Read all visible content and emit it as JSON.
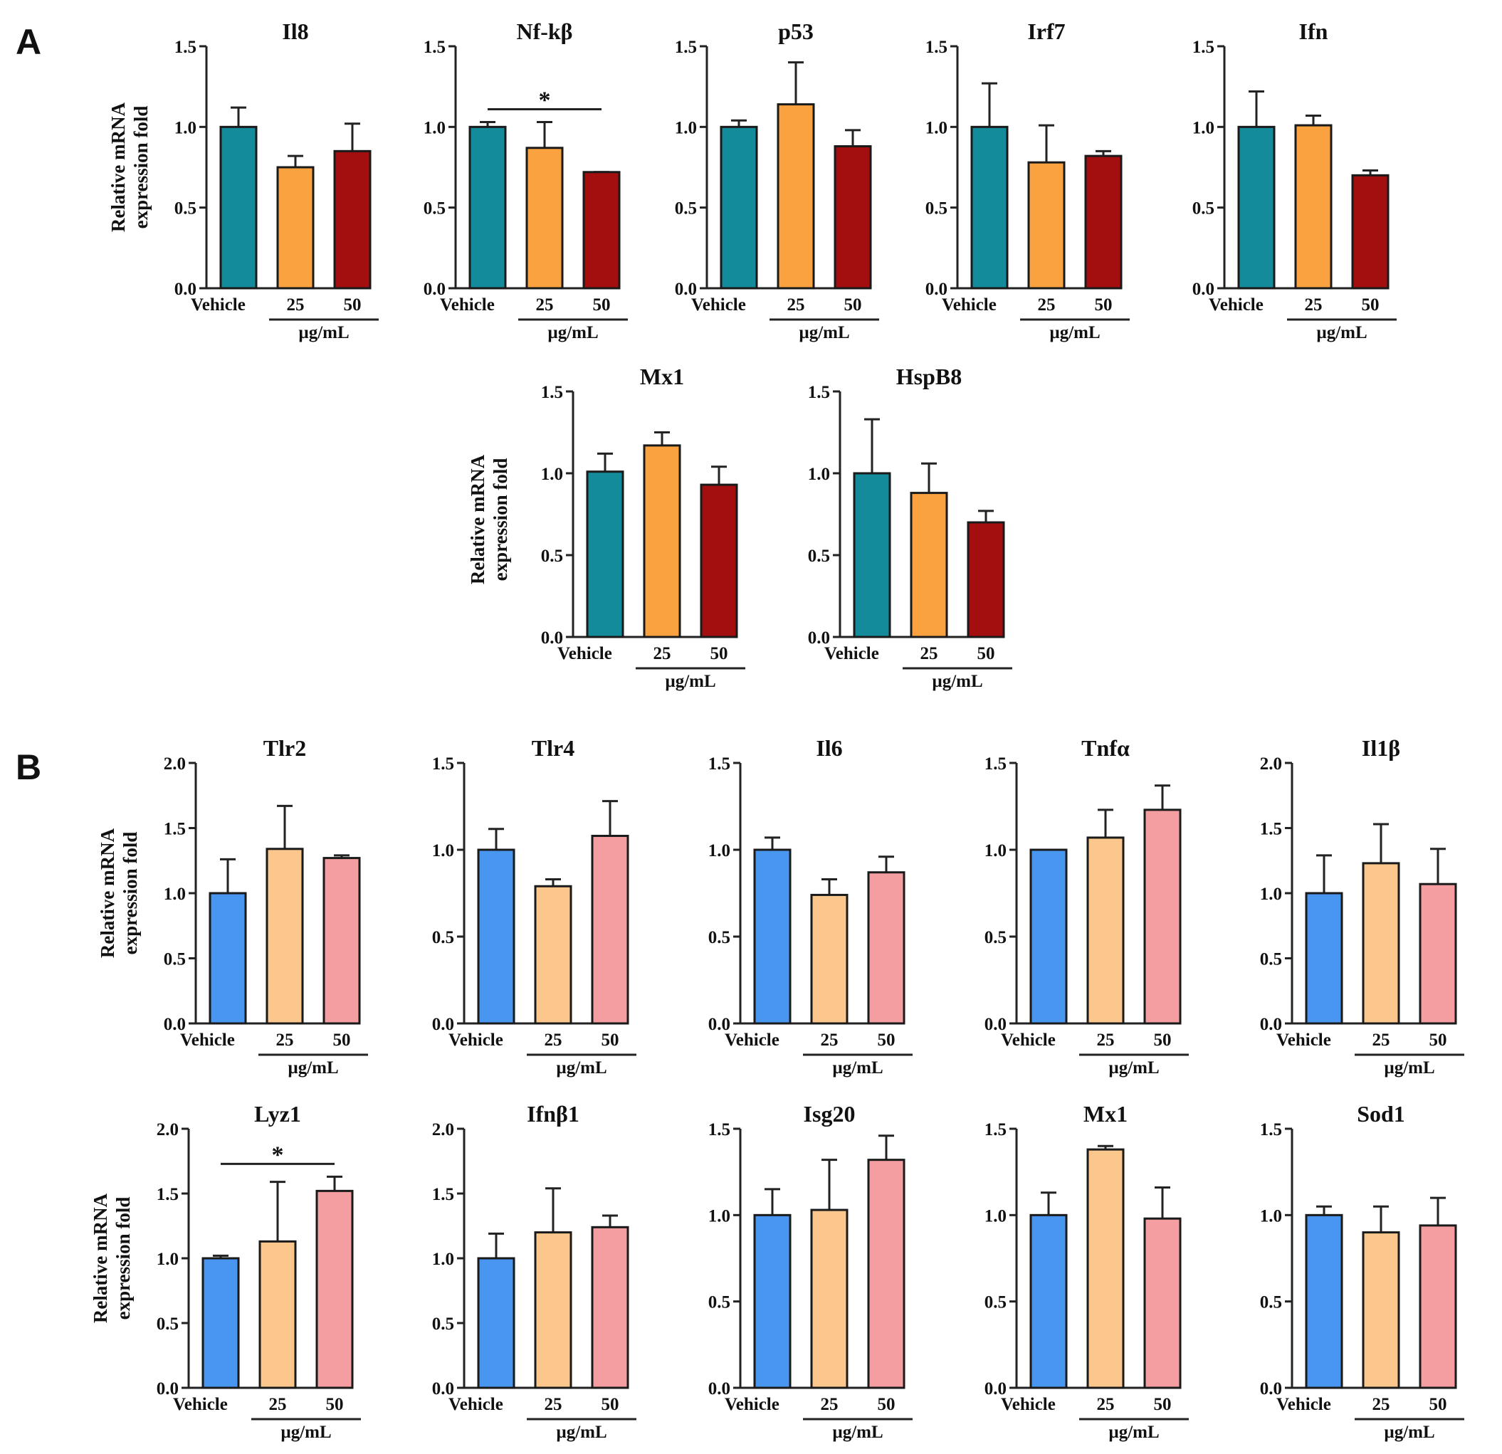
{
  "panels": [
    "A",
    "B"
  ],
  "ylabel": [
    "Relative mRNA",
    "expression fold"
  ],
  "categories": [
    "Vehicle",
    "25",
    "50"
  ],
  "unit": "µg/mL",
  "palettes": {
    "A": [
      "#138b9b",
      "#fba240",
      "#a30f0f"
    ],
    "B": [
      "#4896ef",
      "#fbc78c",
      "#f49ea2"
    ]
  },
  "chart_data": [
    {
      "type": "bar",
      "panel": "A",
      "title": "Il8",
      "categories": [
        "Vehicle",
        "25",
        "50"
      ],
      "values": [
        1.0,
        0.75,
        0.85
      ],
      "errors": [
        0.12,
        0.07,
        0.17
      ],
      "ylim": [
        0,
        1.5
      ],
      "yticks": [
        "0.0",
        "0.5",
        "1.0",
        "1.5"
      ],
      "sig": null
    },
    {
      "type": "bar",
      "panel": "A",
      "title": "Nf-kβ",
      "categories": [
        "Vehicle",
        "25",
        "50"
      ],
      "values": [
        1.0,
        0.87,
        0.72
      ],
      "errors": [
        0.03,
        0.16,
        0.0
      ],
      "ylim": [
        0,
        1.5
      ],
      "yticks": [
        "0.0",
        "0.5",
        "1.0",
        "1.5"
      ],
      "sig": {
        "from": 0,
        "to": 2,
        "label": "*"
      }
    },
    {
      "type": "bar",
      "panel": "A",
      "title": "p53",
      "categories": [
        "Vehicle",
        "25",
        "50"
      ],
      "values": [
        1.0,
        1.14,
        0.88
      ],
      "errors": [
        0.04,
        0.26,
        0.1
      ],
      "ylim": [
        0,
        1.5
      ],
      "yticks": [
        "0.0",
        "0.5",
        "1.0",
        "1.5"
      ],
      "sig": null
    },
    {
      "type": "bar",
      "panel": "A",
      "title": "Irf7",
      "categories": [
        "Vehicle",
        "25",
        "50"
      ],
      "values": [
        1.0,
        0.78,
        0.82
      ],
      "errors": [
        0.27,
        0.23,
        0.03
      ],
      "ylim": [
        0,
        1.5
      ],
      "yticks": [
        "0.0",
        "0.5",
        "1.0",
        "1.5"
      ],
      "sig": null
    },
    {
      "type": "bar",
      "panel": "A",
      "title": "Ifn",
      "categories": [
        "Vehicle",
        "25",
        "50"
      ],
      "values": [
        1.0,
        1.01,
        0.7
      ],
      "errors": [
        0.22,
        0.06,
        0.03
      ],
      "ylim": [
        0,
        1.5
      ],
      "yticks": [
        "0.0",
        "0.5",
        "1.0",
        "1.5"
      ],
      "sig": null
    },
    {
      "type": "bar",
      "panel": "A",
      "title": "Mx1",
      "categories": [
        "Vehicle",
        "25",
        "50"
      ],
      "values": [
        1.01,
        1.17,
        0.93
      ],
      "errors": [
        0.11,
        0.08,
        0.11
      ],
      "ylim": [
        0,
        1.5
      ],
      "yticks": [
        "0.0",
        "0.5",
        "1.0",
        "1.5"
      ],
      "sig": null
    },
    {
      "type": "bar",
      "panel": "A",
      "title": "HspB8",
      "categories": [
        "Vehicle",
        "25",
        "50"
      ],
      "values": [
        1.0,
        0.88,
        0.7
      ],
      "errors": [
        0.33,
        0.18,
        0.07
      ],
      "ylim": [
        0,
        1.5
      ],
      "yticks": [
        "0.0",
        "0.5",
        "1.0",
        "1.5"
      ],
      "sig": null
    },
    {
      "type": "bar",
      "panel": "B",
      "title": "Tlr2",
      "categories": [
        "Vehicle",
        "25",
        "50"
      ],
      "values": [
        1.0,
        1.34,
        1.27
      ],
      "errors": [
        0.26,
        0.33,
        0.02
      ],
      "ylim": [
        0,
        2.0
      ],
      "yticks": [
        "0.0",
        "0.5",
        "1.0",
        "1.5",
        "2.0"
      ],
      "sig": null
    },
    {
      "type": "bar",
      "panel": "B",
      "title": "Tlr4",
      "categories": [
        "Vehicle",
        "25",
        "50"
      ],
      "values": [
        1.0,
        0.79,
        1.08
      ],
      "errors": [
        0.12,
        0.04,
        0.2
      ],
      "ylim": [
        0,
        1.5
      ],
      "yticks": [
        "0.0",
        "0.5",
        "1.0",
        "1.5"
      ],
      "sig": null
    },
    {
      "type": "bar",
      "panel": "B",
      "title": "Il6",
      "categories": [
        "Vehicle",
        "25",
        "50"
      ],
      "values": [
        1.0,
        0.74,
        0.87
      ],
      "errors": [
        0.07,
        0.09,
        0.09
      ],
      "ylim": [
        0,
        1.5
      ],
      "yticks": [
        "0.0",
        "0.5",
        "1.0",
        "1.5"
      ],
      "sig": null
    },
    {
      "type": "bar",
      "panel": "B",
      "title": "Tnfα",
      "categories": [
        "Vehicle",
        "25",
        "50"
      ],
      "values": [
        1.0,
        1.07,
        1.23
      ],
      "errors": [
        0.0,
        0.16,
        0.14
      ],
      "ylim": [
        0,
        1.5
      ],
      "yticks": [
        "0.0",
        "0.5",
        "1.0",
        "1.5"
      ],
      "sig": null
    },
    {
      "type": "bar",
      "panel": "B",
      "title": "Il1β",
      "categories": [
        "Vehicle",
        "25",
        "50"
      ],
      "values": [
        1.0,
        1.23,
        1.07
      ],
      "errors": [
        0.29,
        0.3,
        0.27
      ],
      "ylim": [
        0,
        2.0
      ],
      "yticks": [
        "0.0",
        "0.5",
        "1.0",
        "1.5",
        "2.0"
      ],
      "sig": null
    },
    {
      "type": "bar",
      "panel": "B",
      "title": "Lyz1",
      "categories": [
        "Vehicle",
        "25",
        "50"
      ],
      "values": [
        1.0,
        1.13,
        1.52
      ],
      "errors": [
        0.02,
        0.46,
        0.11
      ],
      "ylim": [
        0,
        2.0
      ],
      "yticks": [
        "0.0",
        "0.5",
        "1.0",
        "1.5",
        "2.0"
      ],
      "sig": {
        "from": 0,
        "to": 2,
        "label": "*"
      }
    },
    {
      "type": "bar",
      "panel": "B",
      "title": "Ifnβ1",
      "categories": [
        "Vehicle",
        "25",
        "50"
      ],
      "values": [
        1.0,
        1.2,
        1.24
      ],
      "errors": [
        0.19,
        0.34,
        0.09
      ],
      "ylim": [
        0,
        2.0
      ],
      "yticks": [
        "0.0",
        "0.5",
        "1.0",
        "1.5",
        "2.0"
      ],
      "sig": null
    },
    {
      "type": "bar",
      "panel": "B",
      "title": "Isg20",
      "categories": [
        "Vehicle",
        "25",
        "50"
      ],
      "values": [
        1.0,
        1.03,
        1.32
      ],
      "errors": [
        0.15,
        0.29,
        0.14
      ],
      "ylim": [
        0,
        1.5
      ],
      "yticks": [
        "0.0",
        "0.5",
        "1.0",
        "1.5"
      ],
      "sig": null
    },
    {
      "type": "bar",
      "panel": "B",
      "title": "Mx1",
      "categories": [
        "Vehicle",
        "25",
        "50"
      ],
      "values": [
        1.0,
        1.38,
        0.98
      ],
      "errors": [
        0.13,
        0.02,
        0.18
      ],
      "ylim": [
        0,
        1.5
      ],
      "yticks": [
        "0.0",
        "0.5",
        "1.0",
        "1.5"
      ],
      "sig": null
    },
    {
      "type": "bar",
      "panel": "B",
      "title": "Sod1",
      "categories": [
        "Vehicle",
        "25",
        "50"
      ],
      "values": [
        1.0,
        0.9,
        0.94
      ],
      "errors": [
        0.05,
        0.15,
        0.16
      ],
      "ylim": [
        0,
        1.5
      ],
      "yticks": [
        "0.0",
        "0.5",
        "1.0",
        "1.5"
      ],
      "sig": null
    }
  ]
}
